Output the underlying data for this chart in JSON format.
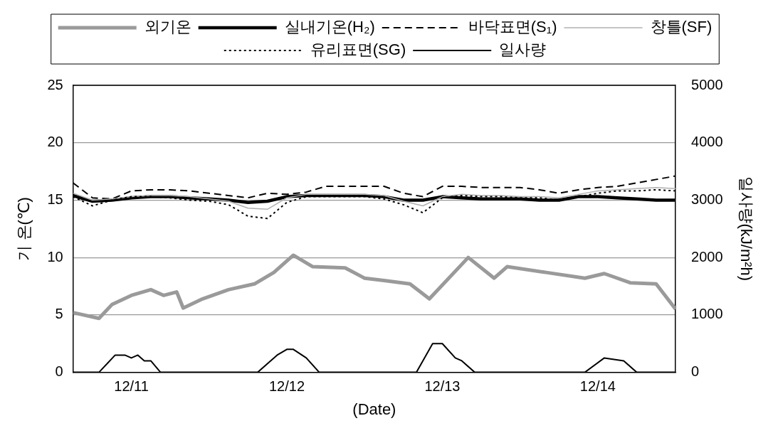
{
  "chart_data": {
    "type": "line",
    "xlabel": "(Date)",
    "ylabel": "기 온(℃)",
    "y2label": "일사량(kJ/m²h)",
    "x": [
      "--12-11T03:00",
      "--12-11T06:00",
      "--12-11T09:00",
      "--12-11T12:00",
      "--12-11T15:00",
      "--12-11T18:00",
      "--12-11T21:00",
      "--12-12T00:00",
      "--12-12T03:00",
      "--12-12T06:00",
      "--12-12T09:00",
      "--12-12T12:00",
      "--12-12T15:00",
      "--12-12T18:00",
      "--12-12T21:00",
      "--12-13T00:00",
      "--12-13T03:00",
      "--12-13T06:00",
      "--12-13T09:00",
      "--12-13T12:00",
      "--12-13T15:00",
      "--12-13T18:00",
      "--12-13T21:00",
      "--12-14T00:00",
      "--12-14T03:00",
      "--12-14T06:00",
      "--12-14T09:00",
      "--12-14T12:00",
      "--12-14T15:00",
      "--12-14T18:00",
      "--12-14T21:00",
      "--12-15T00:00"
    ],
    "series": [
      {
        "name": "외기온",
        "color": "#9a9a9a",
        "line_style": "solid",
        "x": [
          "--12-11T03:00",
          "--12-11T07:00",
          "--12-11T09:00",
          "--12-11T12:00",
          "--12-11T15:00",
          "--12-11T17:00",
          "--12-11T19:00",
          "--12-11T20:00",
          "--12-11T23:00",
          "--12-12T03:00",
          "--12-12T07:00",
          "--12-12T10:00",
          "--12-12T13:00",
          "--12-12T16:00",
          "--12-12T21:00",
          "--12-13T00:00",
          "--12-13T03:00",
          "--12-13T07:00",
          "--12-13T10:00",
          "--12-13T16:00",
          "--12-13T20:00",
          "--12-13T22:00",
          "--12-14T04:00",
          "--12-14T10:00",
          "--12-14T13:00",
          "--12-14T17:00",
          "--12-14T21:00",
          "--12-15T00:00"
        ],
        "values": [
          5.2,
          4.7,
          5.9,
          6.7,
          7.2,
          6.7,
          7.0,
          5.6,
          6.4,
          7.2,
          7.7,
          8.7,
          10.2,
          9.2,
          9.1,
          8.2,
          8.0,
          7.7,
          6.4,
          10.0,
          8.2,
          9.2,
          8.7,
          8.2,
          8.6,
          7.8,
          7.7,
          5.5
        ]
      },
      {
        "name": "실내기온(H₂)",
        "color": "#000000",
        "line_style": "solid",
        "values": [
          15.4,
          14.9,
          15.0,
          15.2,
          15.3,
          15.3,
          15.2,
          15.1,
          15.0,
          14.8,
          14.9,
          15.3,
          15.4,
          15.4,
          15.4,
          15.4,
          15.3,
          15.0,
          15.0,
          15.3,
          15.2,
          15.1,
          15.1,
          15.1,
          15.0,
          15.0,
          15.3,
          15.3,
          15.2,
          15.1,
          15.0,
          15.0
        ]
      },
      {
        "name": "바닥표면(S₁)",
        "color": "#000000",
        "line_style": "dashed",
        "values": [
          16.5,
          15.2,
          15.1,
          15.8,
          15.9,
          15.9,
          15.8,
          15.6,
          15.4,
          15.2,
          15.6,
          15.5,
          15.7,
          16.2,
          16.2,
          16.2,
          16.2,
          15.6,
          15.3,
          16.2,
          16.2,
          16.1,
          16.1,
          16.1,
          15.9,
          15.6,
          15.9,
          16.1,
          16.2,
          16.5,
          16.8,
          17.1
        ]
      },
      {
        "name": "창틀(SF)",
        "color": "#b0b0b0",
        "line_style": "solid",
        "values": [
          15.6,
          15.0,
          15.1,
          15.3,
          15.4,
          15.4,
          15.3,
          15.1,
          14.9,
          14.3,
          14.2,
          15.2,
          15.5,
          15.5,
          15.5,
          15.5,
          15.4,
          14.9,
          14.5,
          15.3,
          15.5,
          15.4,
          15.4,
          15.3,
          15.3,
          15.2,
          15.5,
          15.8,
          15.9,
          16.0,
          16.1,
          16.0
        ]
      },
      {
        "name": "유리표면(SG)",
        "color": "#000000",
        "line_style": "dotted",
        "values": [
          15.3,
          14.5,
          15.0,
          15.3,
          15.3,
          15.2,
          15.0,
          14.9,
          14.6,
          13.6,
          13.4,
          14.8,
          15.3,
          15.3,
          15.3,
          15.3,
          15.1,
          14.6,
          13.9,
          15.2,
          15.4,
          15.3,
          15.3,
          15.2,
          15.2,
          15.0,
          15.3,
          15.6,
          15.8,
          15.8,
          15.9,
          15.8
        ]
      },
      {
        "name": "일사량",
        "color": "#000000",
        "line_style": "solid",
        "axis": "y2",
        "x": [
          "--12-11T03:00",
          "--12-11T07:00",
          "--12-11T09:30",
          "--12-11T11:00",
          "--12-11T12:00",
          "--12-11T13:00",
          "--12-11T14:00",
          "--12-11T15:00",
          "--12-11T16:30",
          "--12-12T07:30",
          "--12-12T10:30",
          "--12-12T12:00",
          "--12-12T13:00",
          "--12-12T15:00",
          "--12-12T17:00",
          "--12-13T08:00",
          "--12-13T10:30",
          "--12-13T12:00",
          "--12-13T14:00",
          "--12-13T15:00",
          "--12-13T17:00",
          "--12-13T19:00",
          "--12-14T10:00",
          "--12-14T13:00",
          "--12-14T16:00",
          "--12-14T18:00",
          "--12-15T00:00"
        ],
        "values": [
          0,
          0,
          300,
          300,
          250,
          300,
          200,
          200,
          0,
          0,
          300,
          400,
          400,
          250,
          0,
          0,
          500,
          500,
          250,
          200,
          0,
          0,
          0,
          250,
          200,
          0,
          0
        ]
      }
    ],
    "xlim": [
      "--12-11T03:00",
      "--12-15T00:00"
    ],
    "xticks": [
      {
        "value": "--12-11T12:00",
        "label": "12/11"
      },
      {
        "value": "--12-12T12:00",
        "label": "12/12"
      },
      {
        "value": "--12-13T12:00",
        "label": "12/13"
      },
      {
        "value": "--12-14T12:00",
        "label": "12/14"
      }
    ],
    "ylim": [
      0,
      25
    ],
    "yticks": [
      0,
      5,
      10,
      15,
      20,
      25
    ],
    "y2lim": [
      0,
      5000
    ],
    "y2ticks": [
      0,
      1000,
      2000,
      3000,
      4000,
      5000
    ],
    "grid": "y",
    "legend": "top",
    "marker": "none"
  }
}
